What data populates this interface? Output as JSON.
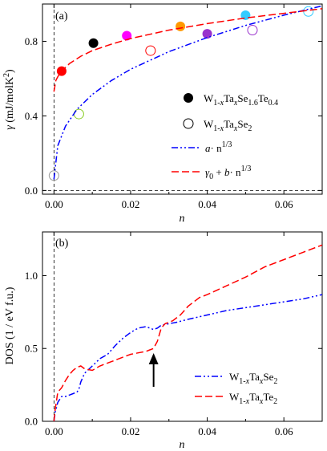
{
  "chart_data": [
    {
      "type": "scatter",
      "panel_label": "(a)",
      "xlabel": "n",
      "ylabel": "γ (mJ/molK²)",
      "xlim": [
        -0.003,
        0.07
      ],
      "ylim": [
        -0.02,
        1.0
      ],
      "xticks": [
        0.0,
        0.02,
        0.04,
        0.06
      ],
      "xtick_labels": [
        "0.00",
        "0.02",
        "0.04",
        "0.06"
      ],
      "yticks": [
        0.0,
        0.4,
        0.8
      ],
      "ytick_labels": [
        "0.0",
        "0.4",
        "0.8"
      ],
      "legend_position": "bottom-right",
      "series": [
        {
          "name": "W1-xTaxSe1.6Te0.4",
          "marker": "filled-circle",
          "x": [
            0.002,
            0.0103,
            0.019,
            0.033,
            0.04,
            0.05
          ],
          "y": [
            0.64,
            0.79,
            0.83,
            0.88,
            0.84,
            0.94
          ],
          "colors": [
            "#ff0000",
            "#000000",
            "#ff00ff",
            "#ff9900",
            "#9933cc",
            "#33ccff"
          ]
        },
        {
          "name": "W1-xTaxSe2",
          "marker": "open-circle",
          "x": [
            0.0,
            0.0065,
            0.0252,
            0.0518,
            0.0664
          ],
          "y": [
            0.08,
            0.41,
            0.75,
            0.86,
            0.96
          ],
          "colors": [
            "#999999",
            "#88cc22",
            "#ff0000",
            "#9933cc",
            "#33ccff"
          ]
        },
        {
          "name": "a·n^1/3",
          "style": "dash-dot-dot",
          "color": "#0000ff",
          "x": [
            0.0,
            0.001,
            0.003,
            0.006,
            0.01,
            0.015,
            0.02,
            0.03,
            0.04,
            0.05,
            0.06,
            0.07
          ],
          "y": [
            0.06,
            0.24,
            0.345,
            0.435,
            0.515,
            0.59,
            0.65,
            0.745,
            0.82,
            0.885,
            0.94,
            0.99
          ]
        },
        {
          "name": "γ0 + b·n^1/3",
          "style": "dashed",
          "color": "#ff0000",
          "x": [
            0.0,
            0.0005,
            0.001,
            0.002,
            0.004,
            0.007,
            0.01,
            0.015,
            0.02,
            0.03,
            0.04,
            0.05,
            0.06,
            0.07
          ],
          "y": [
            0.53,
            0.59,
            0.61,
            0.64,
            0.68,
            0.72,
            0.75,
            0.785,
            0.815,
            0.86,
            0.895,
            0.925,
            0.95,
            0.975
          ]
        }
      ],
      "legend": [
        {
          "base": "W",
          "sub1": "1-",
          "sub1i": "x",
          "mid": "Ta",
          "sub2i": "x",
          "tail": "Se",
          "sub3": "1.6",
          "tail2": "Te",
          "sub4": "0.4"
        },
        {
          "base": "W",
          "sub1": "1-",
          "sub1i": "x",
          "mid": "Ta",
          "sub2i": "x",
          "tail": "Se",
          "sub3": "2"
        },
        {
          "main": "a· n",
          "sup": "1/3"
        },
        {
          "g": "γ",
          "gsub": "0",
          "rest": " + ",
          "bi": "b",
          "dot": "· n",
          "sup": "1/3"
        }
      ]
    },
    {
      "type": "line",
      "panel_label": "(b)",
      "xlabel": "n",
      "ylabel": "DOS (1 / eV f.u.)",
      "xlim": [
        -0.003,
        0.07
      ],
      "ylim": [
        0.0,
        1.3
      ],
      "xticks": [
        0.0,
        0.02,
        0.04,
        0.06
      ],
      "xtick_labels": [
        "0.00",
        "0.02",
        "0.04",
        "0.06"
      ],
      "yticks": [
        0.0,
        0.5,
        1.0
      ],
      "ytick_labels": [
        "0.0",
        "0.5",
        "1.0"
      ],
      "legend_position": "bottom-right",
      "arrow_at_x": 0.026,
      "series": [
        {
          "name": "W1-xTaxSe2",
          "style": "dash-dot-dot",
          "color": "#0000ff",
          "x": [
            0.0,
            0.0003,
            0.001,
            0.002,
            0.003,
            0.004,
            0.005,
            0.006,
            0.0065,
            0.007,
            0.008,
            0.01,
            0.012,
            0.014,
            0.016,
            0.018,
            0.02,
            0.022,
            0.024,
            0.026,
            0.027,
            0.028,
            0.03,
            0.032,
            0.035,
            0.04,
            0.045,
            0.05,
            0.055,
            0.06,
            0.065,
            0.07
          ],
          "y": [
            0.0,
            0.06,
            0.13,
            0.17,
            0.17,
            0.18,
            0.19,
            0.2,
            0.22,
            0.27,
            0.33,
            0.38,
            0.43,
            0.46,
            0.52,
            0.57,
            0.61,
            0.64,
            0.65,
            0.63,
            0.64,
            0.66,
            0.67,
            0.68,
            0.7,
            0.73,
            0.76,
            0.78,
            0.8,
            0.82,
            0.84,
            0.87
          ]
        },
        {
          "name": "W1-xTaxTe2",
          "style": "dashed",
          "color": "#ff0000",
          "x": [
            0.0,
            0.0003,
            0.001,
            0.002,
            0.003,
            0.004,
            0.005,
            0.006,
            0.007,
            0.008,
            0.01,
            0.012,
            0.015,
            0.018,
            0.02,
            0.022,
            0.024,
            0.025,
            0.026,
            0.027,
            0.028,
            0.029,
            0.031,
            0.033,
            0.035,
            0.038,
            0.04,
            0.045,
            0.05,
            0.055,
            0.06,
            0.065,
            0.07
          ],
          "y": [
            0.0,
            0.08,
            0.2,
            0.23,
            0.28,
            0.32,
            0.35,
            0.37,
            0.38,
            0.36,
            0.35,
            0.38,
            0.41,
            0.44,
            0.46,
            0.47,
            0.48,
            0.49,
            0.5,
            0.55,
            0.64,
            0.67,
            0.69,
            0.73,
            0.79,
            0.85,
            0.87,
            0.93,
            0.99,
            1.06,
            1.11,
            1.16,
            1.21
          ]
        }
      ],
      "legend": [
        {
          "base": "W",
          "sub1": "1-",
          "sub1i": "x",
          "mid": "Ta",
          "sub2i": "x",
          "tail": "Se",
          "sub3": "2"
        },
        {
          "base": "W",
          "sub1": "1-",
          "sub1i": "x",
          "mid": "Ta",
          "sub2i": "x",
          "tail": "Te",
          "sub3": "2"
        }
      ]
    }
  ]
}
